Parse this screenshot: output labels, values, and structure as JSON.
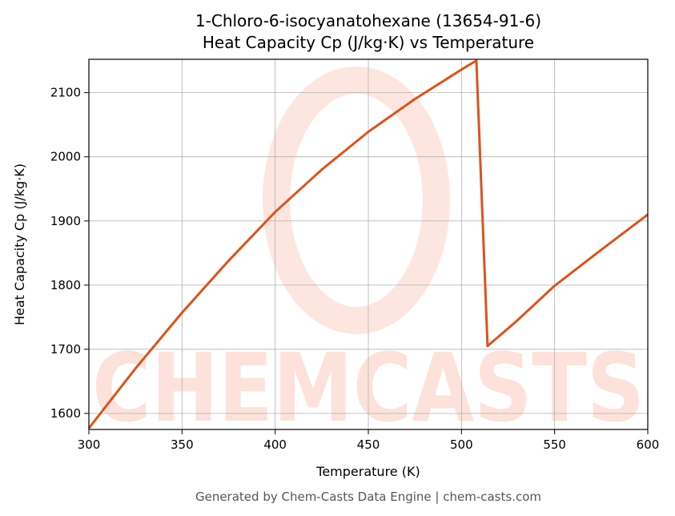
{
  "chart_data": {
    "type": "line",
    "title": [
      "1-Chloro-6-isocyanatohexane (13654-91-6)",
      "Heat Capacity Cp (J/kg·K) vs Temperature"
    ],
    "xlabel": "Temperature (K)",
    "ylabel": "Heat Capacity Cp (J/kg·K)",
    "footer": "Generated by Chem-Casts Data Engine | chem-casts.com",
    "watermark": "CHEMCASTS",
    "x": [
      300,
      325,
      350,
      375,
      400,
      425,
      450,
      475,
      500,
      508,
      514,
      530,
      550,
      575,
      600
    ],
    "series": [
      {
        "name": "Cp",
        "color": "#d9541e",
        "values": [
          1577,
          1670,
          1757,
          1838,
          1914,
          1980,
          2039,
          2090,
          2136,
          2150,
          1705,
          1745,
          1799,
          1855,
          1910
        ]
      }
    ],
    "xlim": [
      300,
      600
    ],
    "xticks": [
      300,
      350,
      400,
      450,
      500,
      550,
      600
    ],
    "ylim": [
      1575,
      2152
    ],
    "yticks": [
      1600,
      1700,
      1800,
      1900,
      2000,
      2100
    ],
    "grid": true
  }
}
